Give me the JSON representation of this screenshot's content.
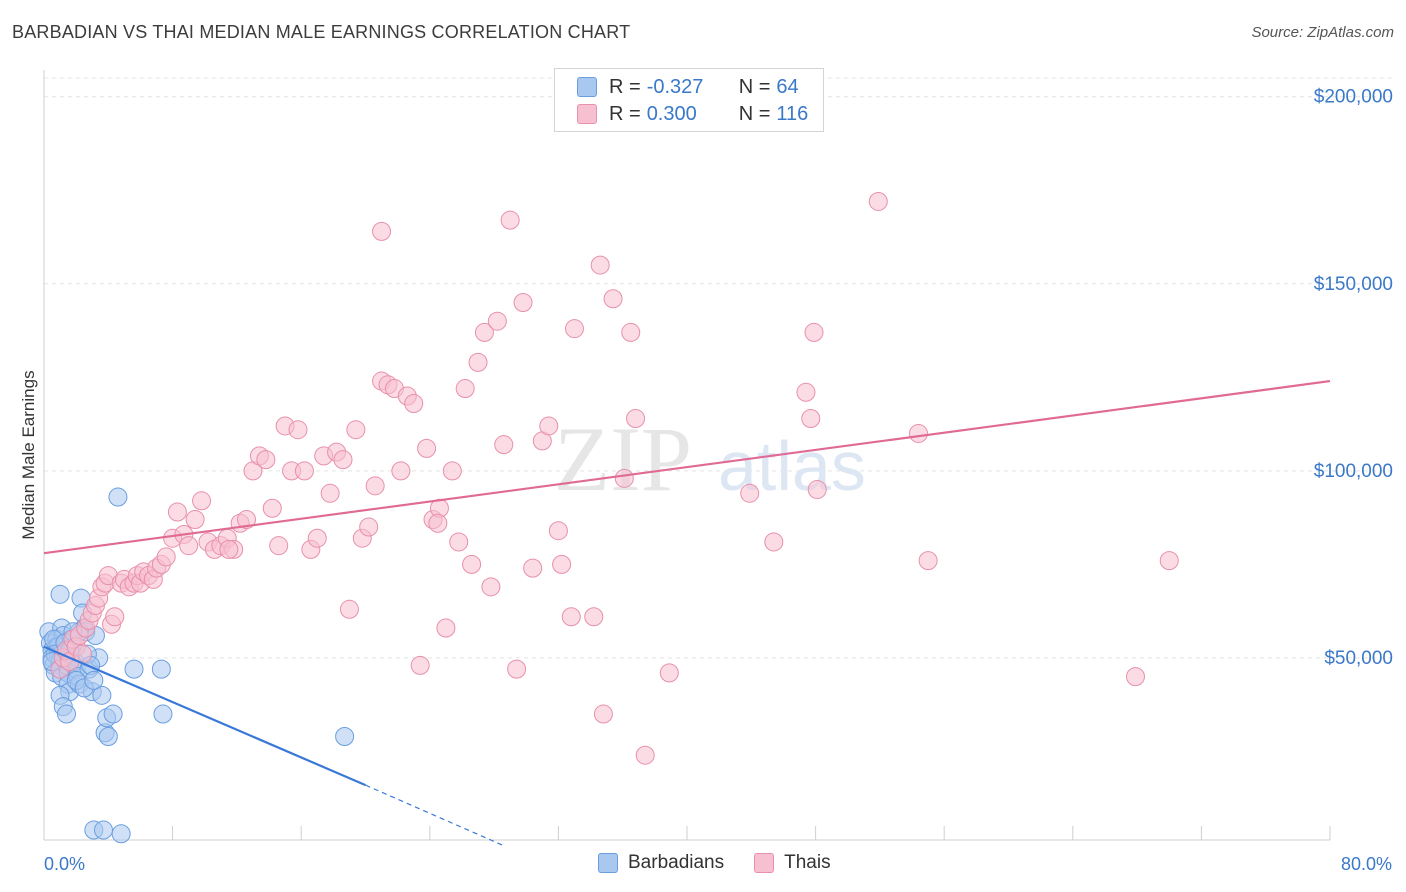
{
  "header": {
    "title": "BARBADIAN VS THAI MEDIAN MALE EARNINGS CORRELATION CHART",
    "source": "Source: ZipAtlas.com"
  },
  "watermark": {
    "zip": "ZIP",
    "atlas": "atlas"
  },
  "legend": {
    "rows": [
      {
        "r_label": "R =",
        "r_value": "-0.327",
        "n_label": "N =",
        "n_value": "64",
        "color": "#a9c8f0",
        "border": "#6a9ee0"
      },
      {
        "r_label": "R =",
        "r_value": "0.300",
        "n_label": "N =",
        "n_value": "116",
        "color": "#f7c0d0",
        "border": "#e890ac"
      }
    ],
    "bottom": [
      {
        "label": "Barbadians",
        "color": "#a9c8f0",
        "border": "#6a9ee0"
      },
      {
        "label": "Thais",
        "color": "#f7c0d0",
        "border": "#e890ac"
      }
    ]
  },
  "chart_data": {
    "type": "scatter",
    "title": "BARBADIAN VS THAI MEDIAN MALE EARNINGS CORRELATION CHART",
    "xlabel": "",
    "ylabel": "Median Male Earnings",
    "xlim": [
      0,
      80
    ],
    "ylim": [
      0,
      205000
    ],
    "x_tick_labels": [
      "0.0%",
      "80.0%"
    ],
    "y_ticks": [
      50000,
      100000,
      150000,
      200000
    ],
    "y_tick_labels": [
      "$50,000",
      "$100,000",
      "$150,000",
      "$200,000"
    ],
    "grid": true,
    "legend_position": "top-center",
    "series": [
      {
        "name": "Barbadians",
        "color": "#6a9ee0",
        "fill": "#a9c8f0",
        "trend": {
          "x": [
            0,
            20
          ],
          "y": [
            53000,
            16000
          ],
          "dashed_to": [
            28.5,
            0
          ]
        },
        "points": [
          [
            0.3,
            57000
          ],
          [
            0.4,
            54000
          ],
          [
            0.5,
            52000
          ],
          [
            0.5,
            50000
          ],
          [
            0.6,
            48000
          ],
          [
            0.7,
            46000
          ],
          [
            0.8,
            55000
          ],
          [
            0.8,
            53000
          ],
          [
            0.9,
            51000
          ],
          [
            1.0,
            49000
          ],
          [
            1.0,
            47000
          ],
          [
            1.1,
            45000
          ],
          [
            1.1,
            58000
          ],
          [
            1.2,
            56000
          ],
          [
            1.2,
            52000
          ],
          [
            1.3,
            50000
          ],
          [
            1.4,
            48000
          ],
          [
            1.5,
            46000
          ],
          [
            1.0,
            67000
          ],
          [
            1.5,
            43000
          ],
          [
            1.6,
            41000
          ],
          [
            1.7,
            55000
          ],
          [
            1.8,
            53000
          ],
          [
            1.9,
            49000
          ],
          [
            2.0,
            47000
          ],
          [
            2.1,
            45000
          ],
          [
            2.2,
            43000
          ],
          [
            2.3,
            66000
          ],
          [
            2.4,
            62000
          ],
          [
            2.5,
            58000
          ],
          [
            2.6,
            57000
          ],
          [
            2.8,
            47000
          ],
          [
            3.0,
            41000
          ],
          [
            3.2,
            56000
          ],
          [
            3.4,
            50000
          ],
          [
            3.6,
            40000
          ],
          [
            1.0,
            40000
          ],
          [
            1.2,
            37000
          ],
          [
            1.4,
            35000
          ],
          [
            2.0,
            44000
          ],
          [
            2.5,
            42000
          ],
          [
            2.7,
            51000
          ],
          [
            0.9,
            53000
          ],
          [
            0.6,
            55000
          ],
          [
            0.7,
            51000
          ],
          [
            0.5,
            49000
          ],
          [
            1.3,
            54000
          ],
          [
            1.6,
            52000
          ],
          [
            2.9,
            48000
          ],
          [
            3.1,
            44000
          ],
          [
            3.8,
            30000
          ],
          [
            4.0,
            29000
          ],
          [
            3.9,
            34000
          ],
          [
            4.3,
            35000
          ],
          [
            3.1,
            4000
          ],
          [
            3.7,
            4000
          ],
          [
            4.8,
            3000
          ],
          [
            4.6,
            93000
          ],
          [
            5.6,
            47000
          ],
          [
            7.3,
            47000
          ],
          [
            7.4,
            35000
          ],
          [
            18.7,
            29000
          ],
          [
            2.2,
            57000
          ],
          [
            1.8,
            57000
          ]
        ]
      },
      {
        "name": "Thais",
        "color": "#e890ac",
        "fill": "#f7c0d0",
        "trend": {
          "x": [
            0,
            80
          ],
          "y": [
            78000,
            124000
          ]
        },
        "points": [
          [
            1.0,
            47000
          ],
          [
            1.2,
            50000
          ],
          [
            1.4,
            52000
          ],
          [
            1.6,
            49000
          ],
          [
            1.8,
            55000
          ],
          [
            2.0,
            53000
          ],
          [
            2.2,
            56000
          ],
          [
            2.4,
            51000
          ],
          [
            2.6,
            58000
          ],
          [
            2.8,
            60000
          ],
          [
            3.0,
            62000
          ],
          [
            3.2,
            64000
          ],
          [
            3.4,
            66000
          ],
          [
            3.6,
            69000
          ],
          [
            3.8,
            70000
          ],
          [
            4.0,
            72000
          ],
          [
            4.2,
            59000
          ],
          [
            4.4,
            61000
          ],
          [
            4.8,
            70000
          ],
          [
            5.0,
            71000
          ],
          [
            5.3,
            69000
          ],
          [
            5.6,
            70000
          ],
          [
            5.8,
            72000
          ],
          [
            6.0,
            70000
          ],
          [
            6.2,
            73000
          ],
          [
            6.5,
            72000
          ],
          [
            6.8,
            71000
          ],
          [
            7.0,
            74000
          ],
          [
            7.3,
            75000
          ],
          [
            7.6,
            77000
          ],
          [
            8.0,
            82000
          ],
          [
            8.3,
            89000
          ],
          [
            8.7,
            83000
          ],
          [
            9.0,
            80000
          ],
          [
            9.4,
            87000
          ],
          [
            9.8,
            92000
          ],
          [
            10.2,
            81000
          ],
          [
            10.6,
            79000
          ],
          [
            11.0,
            80000
          ],
          [
            11.4,
            82000
          ],
          [
            11.8,
            79000
          ],
          [
            12.2,
            86000
          ],
          [
            12.6,
            87000
          ],
          [
            13.0,
            100000
          ],
          [
            13.4,
            104000
          ],
          [
            13.8,
            103000
          ],
          [
            14.2,
            90000
          ],
          [
            14.6,
            80000
          ],
          [
            15.0,
            112000
          ],
          [
            15.4,
            100000
          ],
          [
            15.8,
            111000
          ],
          [
            16.2,
            100000
          ],
          [
            16.6,
            79000
          ],
          [
            17.0,
            82000
          ],
          [
            17.4,
            104000
          ],
          [
            17.8,
            94000
          ],
          [
            18.2,
            105000
          ],
          [
            18.6,
            103000
          ],
          [
            19.0,
            63000
          ],
          [
            19.4,
            111000
          ],
          [
            19.8,
            82000
          ],
          [
            20.2,
            85000
          ],
          [
            20.6,
            96000
          ],
          [
            21.0,
            124000
          ],
          [
            21.4,
            123000
          ],
          [
            21.8,
            122000
          ],
          [
            22.2,
            100000
          ],
          [
            22.6,
            120000
          ],
          [
            23.0,
            118000
          ],
          [
            23.4,
            48000
          ],
          [
            23.8,
            106000
          ],
          [
            24.2,
            87000
          ],
          [
            24.6,
            90000
          ],
          [
            25.0,
            58000
          ],
          [
            25.4,
            100000
          ],
          [
            25.8,
            81000
          ],
          [
            26.2,
            122000
          ],
          [
            26.6,
            75000
          ],
          [
            27.0,
            129000
          ],
          [
            27.4,
            137000
          ],
          [
            27.8,
            69000
          ],
          [
            28.2,
            140000
          ],
          [
            28.6,
            107000
          ],
          [
            29.0,
            167000
          ],
          [
            29.4,
            47000
          ],
          [
            29.8,
            145000
          ],
          [
            30.4,
            74000
          ],
          [
            31.0,
            108000
          ],
          [
            31.4,
            112000
          ],
          [
            32.0,
            84000
          ],
          [
            32.2,
            75000
          ],
          [
            32.8,
            61000
          ],
          [
            33.0,
            138000
          ],
          [
            34.2,
            61000
          ],
          [
            34.6,
            155000
          ],
          [
            34.8,
            35000
          ],
          [
            35.4,
            146000
          ],
          [
            36.1,
            98000
          ],
          [
            36.5,
            137000
          ],
          [
            36.8,
            114000
          ],
          [
            37.4,
            24000
          ],
          [
            38.9,
            46000
          ],
          [
            43.9,
            94000
          ],
          [
            45.4,
            81000
          ],
          [
            47.4,
            121000
          ],
          [
            47.7,
            114000
          ],
          [
            48.1,
            95000
          ],
          [
            47.9,
            137000
          ],
          [
            51.9,
            172000
          ],
          [
            54.4,
            110000
          ],
          [
            55.0,
            76000
          ],
          [
            67.9,
            45000
          ],
          [
            70.0,
            76000
          ],
          [
            21.0,
            164000
          ],
          [
            11.5,
            79000
          ],
          [
            24.5,
            86000
          ]
        ]
      }
    ]
  }
}
